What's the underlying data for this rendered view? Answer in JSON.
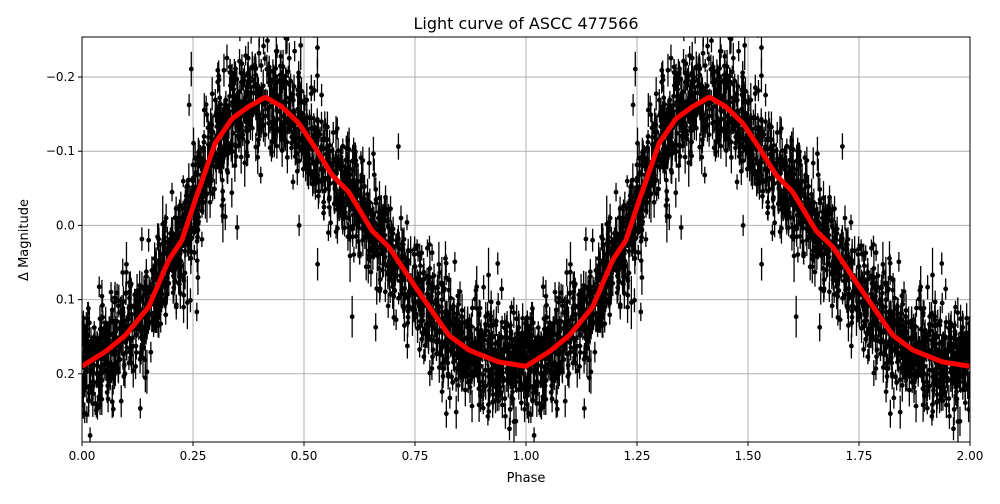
{
  "chart_data": {
    "type": "scatter",
    "title": "Light curve of ASCC 477566",
    "xlabel": "Phase",
    "ylabel": "Δ Magnitude",
    "xlim": [
      0,
      2
    ],
    "ylim": [
      0.292,
      -0.254
    ],
    "y_inverted": true,
    "grid": true,
    "x_ticks": [
      "0.00",
      "0.25",
      "0.50",
      "0.75",
      "1.00",
      "1.25",
      "1.50",
      "1.75",
      "2.00"
    ],
    "x_tick_values": [
      0,
      0.25,
      0.5,
      0.75,
      1,
      1.25,
      1.5,
      1.75,
      2
    ],
    "y_ticks": [
      "−0.2",
      "−0.1",
      "0.0",
      "0.1",
      "0.2"
    ],
    "y_tick_values": [
      -0.2,
      -0.1,
      0,
      0.1,
      0.2
    ],
    "series": [
      {
        "kind": "errorbar-points",
        "color": "#000000",
        "note_repeat_period": 1
      },
      {
        "kind": "line",
        "color": "#ff0000",
        "phase": [
          0,
          0.053,
          0.098,
          0.15,
          0.195,
          0.225,
          0.255,
          0.3,
          0.338,
          0.375,
          0.413,
          0.45,
          0.488,
          0.526,
          0.563,
          0.601,
          0.653,
          0.691,
          0.751,
          0.826,
          0.871,
          0.938,
          1.0
        ],
        "values": [
          0.19,
          0.17,
          0.148,
          0.11,
          0.047,
          0.02,
          -0.034,
          -0.111,
          -0.144,
          -0.16,
          -0.173,
          -0.16,
          -0.138,
          -0.104,
          -0.068,
          -0.045,
          0.007,
          0.029,
          0.083,
          0.148,
          0.168,
          0.184,
          0.19
        ]
      }
    ]
  }
}
